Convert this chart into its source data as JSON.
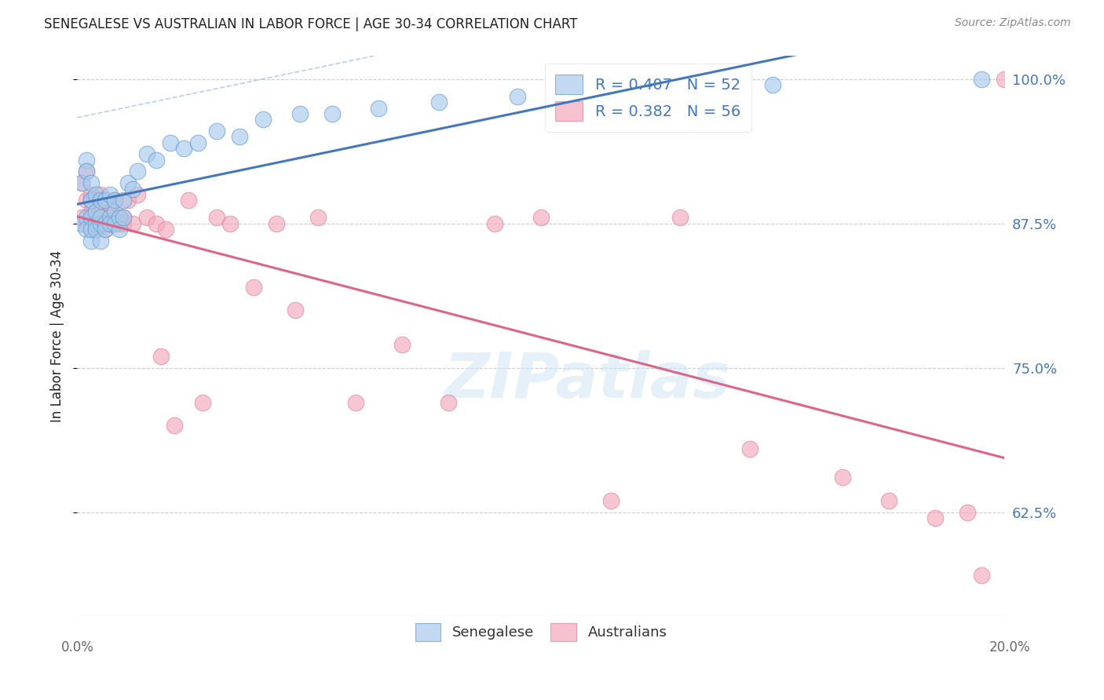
{
  "title": "SENEGALESE VS AUSTRALIAN IN LABOR FORCE | AGE 30-34 CORRELATION CHART",
  "source": "Source: ZipAtlas.com",
  "ylabel": "In Labor Force | Age 30-34",
  "xlim": [
    0.0,
    0.2
  ],
  "ylim": [
    0.535,
    1.02
  ],
  "yticks": [
    0.625,
    0.75,
    0.875,
    1.0
  ],
  "ytick_labels": [
    "62.5%",
    "75.0%",
    "87.5%",
    "100.0%"
  ],
  "legend_entries": [
    {
      "label": "R = 0.407   N = 52",
      "color": "#A8CAEC"
    },
    {
      "label": "R = 0.382   N = 56",
      "color": "#F4A8BC"
    }
  ],
  "blue_scatter_color": "#A8CAEC",
  "pink_scatter_color": "#F4A8BC",
  "blue_edge_color": "#6699CC",
  "pink_edge_color": "#E080A0",
  "blue_line_color": "#4477BB",
  "pink_line_color": "#DD6688",
  "blue_dash_color": "#99BBDD",
  "watermark_text": "ZIPatlas",
  "background_color": "#FFFFFF",
  "grid_color": "#CCCCCC",
  "title_color": "#222222",
  "source_color": "#888888",
  "right_tick_color": "#4477BB",
  "bottom_tick_color": "#666666",
  "senegalese_x": [
    0.001,
    0.001,
    0.002,
    0.002,
    0.002,
    0.002,
    0.003,
    0.003,
    0.003,
    0.003,
    0.003,
    0.003,
    0.004,
    0.004,
    0.004,
    0.004,
    0.005,
    0.005,
    0.005,
    0.005,
    0.006,
    0.006,
    0.006,
    0.007,
    0.007,
    0.007,
    0.008,
    0.008,
    0.008,
    0.009,
    0.009,
    0.01,
    0.01,
    0.011,
    0.012,
    0.013,
    0.015,
    0.017,
    0.02,
    0.023,
    0.026,
    0.03,
    0.035,
    0.04,
    0.048,
    0.055,
    0.065,
    0.078,
    0.095,
    0.115,
    0.15,
    0.195
  ],
  "senegalese_y": [
    0.875,
    0.91,
    0.88,
    0.93,
    0.87,
    0.92,
    0.86,
    0.895,
    0.88,
    0.91,
    0.87,
    0.895,
    0.875,
    0.9,
    0.885,
    0.87,
    0.895,
    0.875,
    0.86,
    0.88,
    0.875,
    0.895,
    0.87,
    0.88,
    0.9,
    0.875,
    0.885,
    0.895,
    0.875,
    0.88,
    0.87,
    0.895,
    0.88,
    0.91,
    0.905,
    0.92,
    0.935,
    0.93,
    0.945,
    0.94,
    0.945,
    0.955,
    0.95,
    0.965,
    0.97,
    0.97,
    0.975,
    0.98,
    0.985,
    0.99,
    0.995,
    1.0
  ],
  "australian_x": [
    0.001,
    0.001,
    0.002,
    0.002,
    0.002,
    0.003,
    0.003,
    0.003,
    0.003,
    0.004,
    0.004,
    0.004,
    0.005,
    0.005,
    0.005,
    0.006,
    0.006,
    0.006,
    0.007,
    0.007,
    0.008,
    0.008,
    0.009,
    0.009,
    0.01,
    0.01,
    0.011,
    0.012,
    0.013,
    0.015,
    0.017,
    0.018,
    0.019,
    0.021,
    0.024,
    0.027,
    0.03,
    0.033,
    0.038,
    0.043,
    0.047,
    0.052,
    0.06,
    0.07,
    0.08,
    0.09,
    0.1,
    0.115,
    0.13,
    0.145,
    0.165,
    0.175,
    0.185,
    0.192,
    0.195,
    0.2
  ],
  "australian_y": [
    0.88,
    0.91,
    0.875,
    0.895,
    0.92,
    0.87,
    0.885,
    0.9,
    0.88,
    0.875,
    0.895,
    0.87,
    0.885,
    0.9,
    0.875,
    0.88,
    0.895,
    0.87,
    0.875,
    0.885,
    0.875,
    0.895,
    0.875,
    0.88,
    0.875,
    0.88,
    0.895,
    0.875,
    0.9,
    0.88,
    0.875,
    0.76,
    0.87,
    0.7,
    0.895,
    0.72,
    0.88,
    0.875,
    0.82,
    0.875,
    0.8,
    0.88,
    0.72,
    0.77,
    0.72,
    0.875,
    0.88,
    0.635,
    0.88,
    0.68,
    0.655,
    0.635,
    0.62,
    0.625,
    0.57,
    1.0
  ]
}
